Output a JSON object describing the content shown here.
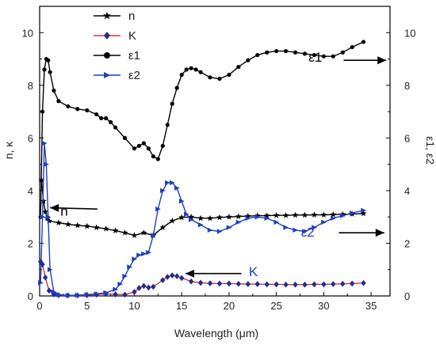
{
  "chart_data": {
    "type": "line",
    "xlabel": "Wavelength (μm)",
    "ylabel_left": "n, κ",
    "ylabel_right": "ε1, ε2",
    "xlim": [
      0,
      37
    ],
    "ylim": [
      0,
      11
    ],
    "x_ticks": [
      "0",
      "5",
      "10",
      "15",
      "20",
      "25",
      "30",
      "35"
    ],
    "y_ticks": [
      "0",
      "2",
      "4",
      "6",
      "8",
      "10"
    ],
    "legend": {
      "position": "top-left"
    },
    "annotations": [
      {
        "text": "n",
        "color": "#000000",
        "text_x": 2.2,
        "text_y": 3.05,
        "arrow_from": [
          6.1,
          3.3
        ],
        "arrow_to": [
          1.1,
          3.35
        ]
      },
      {
        "text": "K",
        "color": "#1f3fbf",
        "text_x": 22.1,
        "text_y": 0.75,
        "arrow_from": [
          21.3,
          0.85
        ],
        "arrow_to": [
          15.4,
          0.85
        ]
      },
      {
        "text": "ε1",
        "color": "#000000",
        "text_x": 28.4,
        "text_y": 8.9,
        "arrow_from": [
          32.1,
          8.95
        ],
        "arrow_to": [
          36.6,
          8.95
        ]
      },
      {
        "text": "ε2",
        "color": "#1f3fbf",
        "text_x": 27.6,
        "text_y": 2.25,
        "arrow_from": [
          31.6,
          2.4
        ],
        "arrow_to": [
          36.4,
          2.4
        ]
      }
    ],
    "series": [
      {
        "name": "n",
        "color": "#000000",
        "marker": "star",
        "x": [
          0.2,
          0.4,
          0.6,
          0.8,
          1,
          2,
          3,
          4,
          5,
          6,
          7,
          8,
          9,
          10,
          11,
          12,
          13,
          14,
          15,
          16,
          17,
          18,
          19,
          20,
          21,
          22,
          23,
          24,
          25,
          26,
          27,
          28,
          29,
          30,
          31,
          32,
          33,
          34.2
        ],
        "y": [
          4.4,
          3.6,
          3.2,
          2.95,
          2.85,
          2.78,
          2.72,
          2.68,
          2.65,
          2.6,
          2.55,
          2.48,
          2.4,
          2.3,
          2.4,
          2.3,
          2.6,
          2.85,
          2.98,
          3.0,
          2.95,
          2.95,
          2.98,
          3.0,
          3.02,
          3.03,
          3.05,
          3.05,
          3.06,
          3.06,
          3.07,
          3.07,
          3.08,
          3.08,
          3.09,
          3.1,
          3.11,
          3.13
        ]
      },
      {
        "name": "K",
        "color": "#1f2d8f",
        "line_color": "#e0303a",
        "marker": "diamond",
        "x": [
          0.1,
          0.3,
          0.6,
          1,
          1.5,
          2,
          3,
          4,
          5,
          6,
          7,
          8,
          9,
          10,
          10.5,
          11,
          11.5,
          12,
          13,
          13.5,
          14,
          14.5,
          15,
          16,
          17,
          18,
          19,
          20,
          21,
          22,
          23,
          24,
          25,
          26,
          27,
          28,
          29,
          30,
          31,
          32,
          33,
          34.2
        ],
        "y": [
          1.3,
          1.2,
          0.7,
          0.2,
          0.06,
          0.03,
          0.02,
          0.02,
          0.03,
          0.05,
          0.08,
          0.06,
          0.05,
          0.15,
          0.3,
          0.38,
          0.32,
          0.35,
          0.6,
          0.72,
          0.78,
          0.75,
          0.68,
          0.55,
          0.5,
          0.48,
          0.47,
          0.47,
          0.46,
          0.45,
          0.45,
          0.44,
          0.44,
          0.43,
          0.43,
          0.43,
          0.44,
          0.44,
          0.45,
          0.46,
          0.47,
          0.49
        ]
      },
      {
        "name": "ε1",
        "color": "#000000",
        "marker": "circle",
        "x": [
          0.1,
          0.3,
          0.5,
          0.7,
          0.9,
          1.1,
          1.5,
          2,
          3,
          4,
          5,
          6,
          6.5,
          7,
          7.5,
          8,
          9,
          10,
          10.5,
          11,
          11.5,
          12,
          12.5,
          13,
          13.5,
          14,
          14.5,
          15,
          15.5,
          16,
          16.5,
          17,
          18,
          19,
          20,
          21,
          22,
          23,
          24,
          25,
          26,
          27,
          28,
          29,
          30,
          31,
          32,
          33,
          34.2
        ],
        "y": [
          3.0,
          7.0,
          8.6,
          9.0,
          8.95,
          8.5,
          7.8,
          7.4,
          7.2,
          7.1,
          7.05,
          6.9,
          6.75,
          6.75,
          6.6,
          6.4,
          6.0,
          5.6,
          5.7,
          5.8,
          5.6,
          5.3,
          5.2,
          5.7,
          6.5,
          7.3,
          7.9,
          8.4,
          8.6,
          8.65,
          8.6,
          8.5,
          8.3,
          8.25,
          8.4,
          8.7,
          8.95,
          9.15,
          9.25,
          9.3,
          9.3,
          9.25,
          9.2,
          9.15,
          9.1,
          9.1,
          9.25,
          9.45,
          9.65
        ]
      },
      {
        "name": "ε2",
        "color": "#1f3fbf",
        "marker": "triangle-right",
        "x": [
          0.1,
          0.3,
          0.5,
          0.7,
          0.9,
          1.1,
          1.5,
          2,
          3,
          4,
          5,
          6,
          7,
          8,
          8.5,
          9,
          9.5,
          10,
          10.5,
          11,
          11.5,
          12,
          12.5,
          13,
          13.5,
          14,
          14.5,
          15,
          15.5,
          16,
          17,
          18,
          19,
          20,
          21,
          22,
          23,
          24,
          25,
          26,
          27,
          28,
          29,
          30,
          31,
          32,
          33,
          34.2
        ],
        "y": [
          0.5,
          3.0,
          5.8,
          5.0,
          3.0,
          1.0,
          0.15,
          0.05,
          0.02,
          0.03,
          0.05,
          0.08,
          0.12,
          0.25,
          0.45,
          0.75,
          1.1,
          1.4,
          1.55,
          1.6,
          1.65,
          2.3,
          3.3,
          4.0,
          4.3,
          4.3,
          4.1,
          3.6,
          3.1,
          2.9,
          2.7,
          2.5,
          2.45,
          2.6,
          2.8,
          2.95,
          3.0,
          2.95,
          2.8,
          2.6,
          2.5,
          2.45,
          2.6,
          2.8,
          2.95,
          3.05,
          3.15,
          3.25
        ]
      }
    ]
  }
}
